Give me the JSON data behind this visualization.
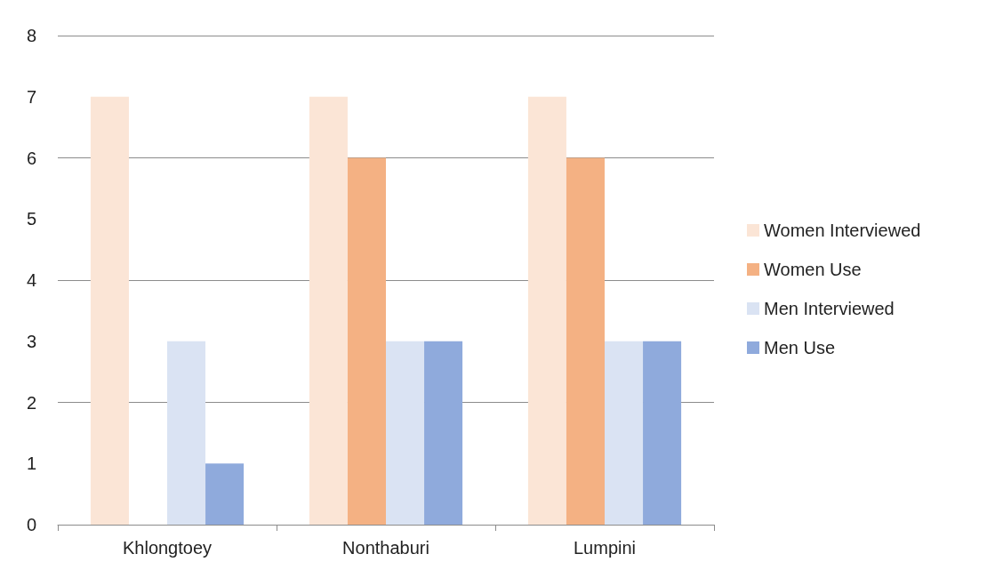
{
  "chart_data": {
    "type": "bar",
    "categories": [
      "Khlongtoey",
      "Nonthaburi",
      "Lumpini"
    ],
    "series": [
      {
        "name": "Women Interviewed",
        "color": "#fbe5d6",
        "values": [
          7,
          7,
          7
        ]
      },
      {
        "name": "Women Use",
        "color": "#f4b183",
        "values": [
          0,
          6,
          6
        ]
      },
      {
        "name": "Men Interviewed",
        "color": "#dae3f3",
        "values": [
          3,
          3,
          3
        ]
      },
      {
        "name": "Men Use",
        "color": "#8faadc",
        "values": [
          1,
          3,
          3
        ]
      }
    ],
    "ylim": [
      0,
      8
    ],
    "yticks": [
      0,
      1,
      2,
      3,
      4,
      5,
      6,
      7,
      8
    ],
    "grid": "y",
    "legend": "right"
  }
}
